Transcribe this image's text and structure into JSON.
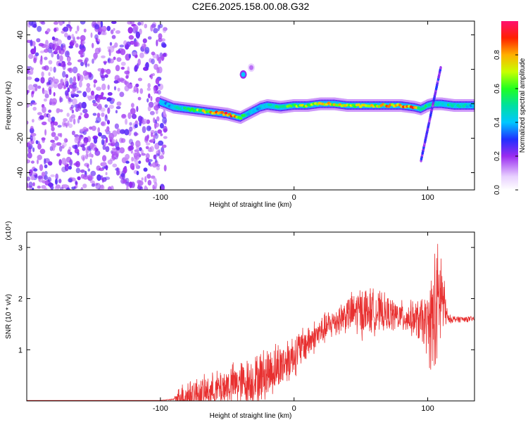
{
  "title": "C2E6.2025.158.00.08.G32",
  "chart_data": [
    {
      "type": "heatmap",
      "xlabel": "Height of straight line (km)",
      "ylabel": "Frequency (Hz)",
      "xlim": [
        -200,
        135
      ],
      "ylim": [
        -50,
        48
      ],
      "x_ticks": [
        -100,
        0,
        100
      ],
      "x_tick_labels": [
        "-100",
        "0",
        "100"
      ],
      "y_ticks": [
        -40,
        -20,
        0,
        20,
        40
      ],
      "y_tick_labels": [
        "-40",
        "-20",
        "0",
        "20",
        "40"
      ],
      "colorbar": {
        "label": "Normalized spectral amplitude",
        "ticks": [
          0.0,
          0.2,
          0.4,
          0.6,
          0.8
        ],
        "tick_labels": [
          "0.0",
          "0.2",
          "0.4",
          "0.6",
          "0.8"
        ],
        "range": [
          0,
          1
        ]
      },
      "noise_region": {
        "x_range": [
          -200,
          -96
        ],
        "level": 0.12
      },
      "ridge": {
        "x": [
          -100,
          -90,
          -80,
          -70,
          -60,
          -50,
          -45,
          -40,
          -35,
          -30,
          -25,
          -20,
          -10,
          0,
          10,
          20,
          30,
          40,
          50,
          60,
          70,
          80,
          90,
          95,
          100,
          105,
          110,
          120,
          135
        ],
        "y": [
          1,
          -2,
          -3,
          -4,
          -5,
          -6,
          -7,
          -8,
          -6,
          -4,
          -2,
          -1,
          -2,
          -1,
          -1,
          0,
          0,
          -1,
          -1,
          -1,
          -1,
          -1,
          -2,
          -3,
          -1,
          0,
          0,
          -1,
          -1
        ],
        "amp": [
          0.4,
          0.45,
          0.55,
          0.75,
          0.85,
          0.95,
          0.9,
          0.7,
          0.5,
          0.45,
          0.45,
          0.5,
          0.55,
          0.7,
          0.75,
          0.8,
          0.8,
          0.8,
          0.75,
          0.8,
          0.85,
          0.95,
          0.9,
          0.6,
          0.55,
          0.6,
          0.55,
          0.5,
          0.45
        ]
      },
      "features": [
        {
          "x": -38,
          "y": 17,
          "amp": 0.4
        },
        {
          "x": -32,
          "y": 21,
          "amp": 0.15
        }
      ],
      "streak": {
        "x": [
          95,
          110
        ],
        "y": [
          -33,
          22
        ],
        "amp": 0.25
      }
    },
    {
      "type": "line",
      "xlabel": "Height of straight line (km)",
      "ylabel": "SNR (10 * v/v)",
      "y_scale_label": "(x10⁴)",
      "xlim": [
        -200,
        135
      ],
      "ylim": [
        0,
        3.3
      ],
      "x_ticks": [
        -100,
        0,
        100
      ],
      "x_tick_labels": [
        "-100",
        "0",
        "100"
      ],
      "y_ticks": [
        1,
        2,
        3
      ],
      "y_tick_labels": [
        "1",
        "2",
        "3"
      ],
      "color": "#e83030",
      "envelope": {
        "x": [
          -200,
          -100,
          -90,
          -85,
          -80,
          -70,
          -60,
          -50,
          -40,
          -30,
          -20,
          -10,
          0,
          10,
          20,
          30,
          40,
          50,
          60,
          70,
          80,
          90,
          100,
          105,
          110,
          115,
          120,
          135
        ],
        "base": [
          0.01,
          0.01,
          0.03,
          0.08,
          0.1,
          0.15,
          0.2,
          0.3,
          0.35,
          0.4,
          0.55,
          0.7,
          0.9,
          1.15,
          1.35,
          1.55,
          1.7,
          1.75,
          1.75,
          1.7,
          1.65,
          1.6,
          1.5,
          1.6,
          2.1,
          1.6,
          1.6,
          1.6
        ],
        "amplitude": [
          0.0,
          0.0,
          0.02,
          0.3,
          0.4,
          0.35,
          0.4,
          0.45,
          0.5,
          0.55,
          0.6,
          0.55,
          0.5,
          0.4,
          0.35,
          0.35,
          0.4,
          0.6,
          0.5,
          0.4,
          0.35,
          0.4,
          0.7,
          1.6,
          1.2,
          0.1,
          0.08,
          0.06
        ]
      }
    }
  ]
}
